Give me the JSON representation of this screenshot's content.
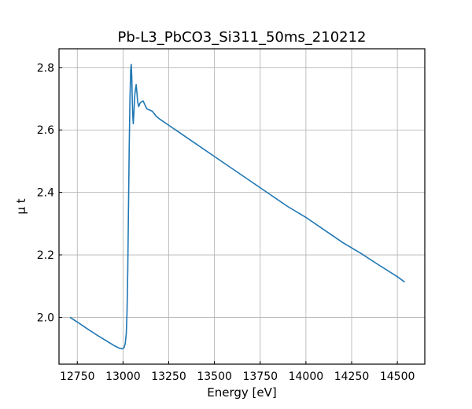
{
  "chart_data": {
    "type": "line",
    "title": "Pb-L3_PbCO3_Si311_50ms_210212",
    "xlabel": "Energy [eV]",
    "ylabel": "μ t",
    "xlim": [
      12650,
      14650
    ],
    "ylim": [
      1.85,
      2.86
    ],
    "x_ticks": [
      12750,
      13000,
      13250,
      13500,
      13750,
      14000,
      14250,
      14500
    ],
    "y_ticks": [
      2.0,
      2.2,
      2.4,
      2.6,
      2.8
    ],
    "x_tick_labels": [
      "12750",
      "13000",
      "13250",
      "13500",
      "13750",
      "14000",
      "14250",
      "14500"
    ],
    "y_tick_labels": [
      "2.0",
      "2.2",
      "2.4",
      "2.6",
      "2.8"
    ],
    "grid": true,
    "series": [
      {
        "color": "#1f77b4",
        "x": [
          12710,
          12750,
          12800,
          12850,
          12900,
          12950,
          12980,
          12995,
          13005,
          13012,
          13018,
          13022,
          13026,
          13030,
          13034,
          13038,
          13042,
          13045,
          13048,
          13050,
          13053,
          13056,
          13060,
          13064,
          13068,
          13072,
          13076,
          13080,
          13086,
          13092,
          13100,
          13110,
          13120,
          13130,
          13140,
          13160,
          13180,
          13200,
          13250,
          13300,
          13400,
          13500,
          13600,
          13700,
          13800,
          13900,
          14000,
          14100,
          14200,
          14300,
          14400,
          14500,
          14540
        ],
        "y": [
          2.0,
          1.985,
          1.965,
          1.946,
          1.928,
          1.91,
          1.901,
          1.899,
          1.902,
          1.915,
          1.95,
          2.02,
          2.15,
          2.35,
          2.55,
          2.7,
          2.79,
          2.81,
          2.77,
          2.71,
          2.65,
          2.62,
          2.66,
          2.71,
          2.73,
          2.745,
          2.72,
          2.69,
          2.675,
          2.685,
          2.69,
          2.693,
          2.68,
          2.668,
          2.665,
          2.66,
          2.645,
          2.635,
          2.615,
          2.595,
          2.555,
          2.515,
          2.475,
          2.435,
          2.395,
          2.355,
          2.32,
          2.28,
          2.24,
          2.205,
          2.167,
          2.13,
          2.113
        ]
      }
    ]
  }
}
